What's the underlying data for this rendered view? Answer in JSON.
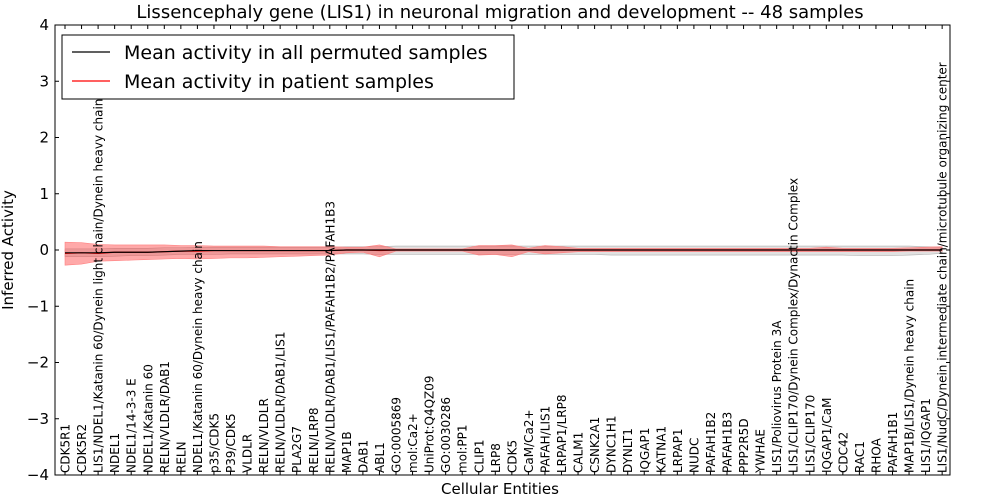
{
  "chart_data": {
    "type": "line",
    "title": "Lissencephaly gene (LIS1) in neuronal migration and development -- 48 samples",
    "xlabel": "Cellular Entities",
    "ylabel": "Inferred Activity",
    "ylim": [
      -4,
      4
    ],
    "yticks": [
      -4,
      -3,
      -2,
      -1,
      0,
      1,
      2,
      3,
      4
    ],
    "ytick_labels": [
      "−4",
      "−3",
      "−2",
      "−1",
      "0",
      "1",
      "2",
      "3",
      "4"
    ],
    "legend_position": "top-left",
    "categories": [
      "CDK5R1",
      "CDK5R2",
      "LIS1/NDEL1/Katanin 60/Dynein light chain/Dynein heavy chain",
      "NDEL1",
      "NDEL1/14-3-3 E",
      "NDEL1/Katanin 60",
      "RELN/VLDLR/DAB1",
      "RELN",
      "NDEL1/Katanin 60/Dynein heavy chain",
      "p35/CDK5",
      "P39/CDK5",
      "VLDLR",
      "RELN/VLDLR",
      "RELN/VLDLR/DAB1/LIS1",
      "PLA2G7",
      "RELN/LRP8",
      "RELN/VLDLR/DAB1/LIS1/PAFAH1B2/PAFAH1B3",
      "MAP1B",
      "DAB1",
      "ABL1",
      "GO:0005869",
      "mol:Ca2+",
      "UniProt:Q4QZ09",
      "GO:0030286",
      "mol:PP1",
      "CLIP1",
      "LRP8",
      "CDK5",
      "CaM/Ca2+",
      "PAFAH/LIS1",
      "LRPAP1/LRP8",
      "CALM1",
      "CSNK2A1",
      "DYNC1H1",
      "DYNLT1",
      "IQGAP1",
      "KATNA1",
      "LRPAP1",
      "NUDC",
      "PAFAH1B2",
      "PAFAH1B3",
      "PPP2R5D",
      "YWHAE",
      "LIS1/Poliovirus Protein 3A",
      "LIS1/CLIP170/Dynein Complex/Dynactin Complex",
      "LIS1/CLIP170",
      "IQGAP1/CaM",
      "CDC42",
      "RAC1",
      "RHOA",
      "PAFAH1B1",
      "MAP1B/LIS1/Dynein heavy chain",
      "LIS1/IQGAP1",
      "LIS1/NudC/Dynein intermediate chain/microtubule organizing center"
    ],
    "series": [
      {
        "name": "Mean activity in all permuted samples",
        "color": "#000000",
        "values": [
          -0.05,
          -0.05,
          -0.05,
          -0.04,
          -0.04,
          -0.04,
          -0.03,
          -0.02,
          -0.01,
          -0.01,
          -0.01,
          -0.01,
          -0.01,
          -0.01,
          -0.01,
          -0.01,
          -0.01,
          0,
          0,
          0,
          0,
          0,
          0,
          0,
          0,
          0,
          0,
          0,
          0,
          0,
          0,
          0,
          0,
          0,
          0,
          0,
          0,
          0,
          0,
          0,
          0,
          0,
          0,
          0,
          0,
          0,
          0,
          0,
          0,
          0,
          0,
          0,
          0,
          0
        ],
        "band_lower": [
          -0.12,
          -0.12,
          -0.12,
          -0.11,
          -0.1,
          -0.1,
          -0.09,
          -0.08,
          -0.08,
          -0.08,
          -0.07,
          -0.07,
          -0.07,
          -0.07,
          -0.07,
          -0.07,
          -0.07,
          -0.07,
          -0.07,
          -0.08,
          -0.08,
          -0.08,
          -0.08,
          -0.08,
          -0.08,
          -0.08,
          -0.08,
          -0.08,
          -0.08,
          -0.08,
          -0.08,
          -0.08,
          -0.08,
          -0.09,
          -0.09,
          -0.09,
          -0.09,
          -0.09,
          -0.09,
          -0.09,
          -0.09,
          -0.09,
          -0.09,
          -0.09,
          -0.09,
          -0.09,
          -0.09,
          -0.09,
          -0.1,
          -0.1,
          -0.1,
          -0.09,
          -0.08,
          -0.06
        ],
        "band_upper": [
          0.02,
          0.02,
          0.02,
          0.03,
          0.03,
          0.03,
          0.04,
          0.04,
          0.05,
          0.05,
          0.05,
          0.05,
          0.05,
          0.05,
          0.05,
          0.05,
          0.05,
          0.06,
          0.06,
          0.06,
          0.07,
          0.07,
          0.07,
          0.07,
          0.07,
          0.07,
          0.07,
          0.07,
          0.07,
          0.07,
          0.07,
          0.07,
          0.07,
          0.07,
          0.07,
          0.07,
          0.07,
          0.07,
          0.07,
          0.07,
          0.07,
          0.07,
          0.07,
          0.07,
          0.07,
          0.07,
          0.07,
          0.07,
          0.07,
          0.07,
          0.07,
          0.07,
          0.06,
          0.05
        ]
      },
      {
        "name": "Mean activity in patient samples",
        "color": "#ff0000",
        "values": [
          -0.06,
          -0.05,
          -0.06,
          -0.04,
          -0.04,
          -0.04,
          -0.03,
          -0.02,
          -0.02,
          -0.01,
          -0.01,
          -0.01,
          -0.01,
          -0.01,
          -0.01,
          -0.01,
          -0.01,
          0,
          0,
          -0.01,
          0,
          0,
          0,
          0,
          0,
          0,
          0,
          0,
          0,
          0,
          0,
          0,
          0,
          0,
          0,
          0,
          0,
          0,
          0,
          0,
          0,
          0,
          0,
          0,
          0,
          0,
          0,
          0,
          0,
          0,
          0,
          0,
          0,
          0
        ],
        "band_lower": [
          -0.27,
          -0.25,
          -0.2,
          -0.19,
          -0.18,
          -0.17,
          -0.16,
          -0.15,
          -0.16,
          -0.15,
          -0.14,
          -0.14,
          -0.13,
          -0.12,
          -0.11,
          -0.1,
          -0.09,
          -0.05,
          -0.04,
          -0.12,
          -0.02,
          -0.02,
          -0.02,
          -0.02,
          -0.02,
          -0.09,
          -0.08,
          -0.12,
          -0.03,
          -0.07,
          -0.05,
          -0.03,
          -0.03,
          -0.03,
          -0.03,
          -0.03,
          -0.03,
          -0.03,
          -0.03,
          -0.03,
          -0.03,
          -0.03,
          -0.03,
          -0.03,
          -0.03,
          -0.03,
          -0.03,
          -0.03,
          -0.03,
          -0.03,
          -0.03,
          -0.02,
          -0.02,
          -0.02
        ],
        "band_upper": [
          0.14,
          0.13,
          0.1,
          0.09,
          0.09,
          0.09,
          0.09,
          0.08,
          0.08,
          0.07,
          0.07,
          0.07,
          0.07,
          0.06,
          0.06,
          0.06,
          0.06,
          0.05,
          0.05,
          0.09,
          0.02,
          0.02,
          0.02,
          0.02,
          0.02,
          0.08,
          0.08,
          0.09,
          0.03,
          0.08,
          0.06,
          0.03,
          0.03,
          0.03,
          0.03,
          0.03,
          0.03,
          0.03,
          0.03,
          0.03,
          0.03,
          0.03,
          0.03,
          0.03,
          0.03,
          0.03,
          0.05,
          0.03,
          0.03,
          0.03,
          0.03,
          0.04,
          0.05,
          0.06
        ]
      }
    ]
  }
}
